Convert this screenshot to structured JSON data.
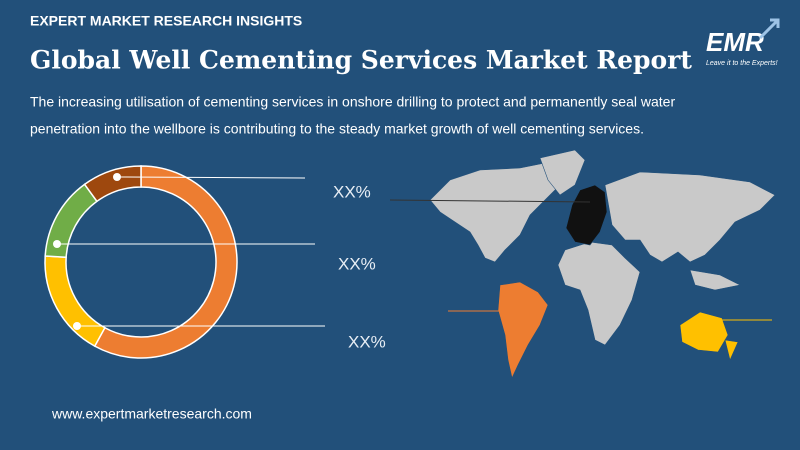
{
  "header": {
    "kicker": "EXPERT MARKET RESEARCH INSIGHTS",
    "title": "Global Well Cementing Services Market Report",
    "logo": "EMR",
    "tagline": "Leave it to the Experts!"
  },
  "description": [
    "The increasing utilisation of cementing services in onshore drilling to protect and permanently seal water",
    "penetration into the wellbore is contributing to the steady market growth of well cementing services."
  ],
  "chart_data": {
    "type": "pie",
    "values": [
      58,
      18,
      14,
      10
    ],
    "colors": [
      "#ed7d31",
      "#ffc000",
      "#70ad47",
      "#9e480e"
    ],
    "annotations": [
      "XX%",
      "XX%",
      "XX%"
    ]
  },
  "footer": {
    "website": "www.expertmarketresearch.com"
  }
}
